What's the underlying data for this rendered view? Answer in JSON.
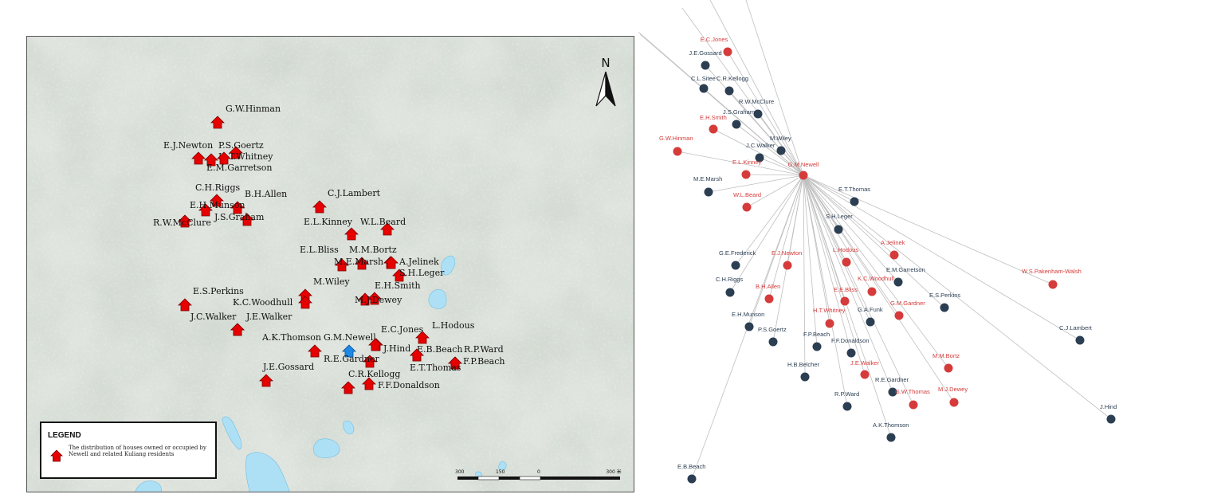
{
  "map": {
    "compass_label": "N",
    "houses": [
      {
        "label": "G.W.Hinman",
        "highlight": false
      },
      {
        "label": "E.J.Newton",
        "highlight": false
      },
      {
        "label": "P.S.Goertz",
        "highlight": false
      },
      {
        "label": "H.T.Whitney",
        "highlight": false
      },
      {
        "label": "E.M.Garretson",
        "highlight": false
      },
      {
        "label": "C.H.Riggs",
        "highlight": false
      },
      {
        "label": "B.H.Allen",
        "highlight": false
      },
      {
        "label": "E.H.Munson",
        "highlight": false
      },
      {
        "label": "J.S.Graham",
        "highlight": false
      },
      {
        "label": "R.W.McClure",
        "highlight": false
      },
      {
        "label": "C.J.Lambert",
        "highlight": false
      },
      {
        "label": "E.L.Kinney",
        "highlight": false
      },
      {
        "label": "W.L.Beard",
        "highlight": false
      },
      {
        "label": "E.L.Bliss",
        "highlight": false
      },
      {
        "label": "M.M.Bortz",
        "highlight": false
      },
      {
        "label": "M.E.Marsh",
        "highlight": false
      },
      {
        "label": "A.Jelinek",
        "highlight": false
      },
      {
        "label": "S.H.Leger",
        "highlight": false
      },
      {
        "label": "E.S.Perkins",
        "highlight": false
      },
      {
        "label": "M.Wiley",
        "highlight": false
      },
      {
        "label": "E.H.Smith",
        "highlight": false
      },
      {
        "label": "K.C.Woodhull",
        "highlight": false
      },
      {
        "label": "M.J.Dewey",
        "highlight": false
      },
      {
        "label": "J.C.Walker",
        "highlight": false
      },
      {
        "label": "J.E.Walker",
        "highlight": false
      },
      {
        "label": "L.Hodous",
        "highlight": false
      },
      {
        "label": "E.C.Jones",
        "highlight": false
      },
      {
        "label": "A.K.Thomson",
        "highlight": false
      },
      {
        "label": "G.M.Newell",
        "highlight": true
      },
      {
        "label": "J.Hind",
        "highlight": false
      },
      {
        "label": "E.B.Beach",
        "highlight": false
      },
      {
        "label": "R.P.Ward",
        "highlight": false
      },
      {
        "label": "R.E.Gardner",
        "highlight": false
      },
      {
        "label": "F.P.Beach",
        "highlight": false
      },
      {
        "label": "J.E.Gossard",
        "highlight": false
      },
      {
        "label": "E.T.Thomas",
        "highlight": false
      },
      {
        "label": "C.R.Kellogg",
        "highlight": false
      },
      {
        "label": "F.F.Donaldson",
        "highlight": false
      }
    ],
    "legend": {
      "title": "LEGEND",
      "description": "The distribution of houses owned or occupied by Newell and related Kuliang residents"
    },
    "scale": {
      "left": "300",
      "middle": "150",
      "zero": "0",
      "right": "300 米"
    },
    "colors": {
      "house": "#e60000",
      "newell_house": "#1e88e5",
      "water": "#aee0f5"
    }
  },
  "network": {
    "center": {
      "label": "G.M.Newell",
      "color": "#d63b3b"
    },
    "colors": {
      "red": "#d63b3b",
      "dark": "#2b3e52",
      "edge": "#bfbfbf"
    },
    "nodes": [
      {
        "label": "E.C.Jones",
        "color": "red"
      },
      {
        "label": "J.E.Gossard",
        "color": "dark"
      },
      {
        "label": "C.L.Sitee",
        "color": "dark"
      },
      {
        "label": "C.R.Kellogg",
        "color": "dark"
      },
      {
        "label": "R.W.McClure",
        "color": "dark"
      },
      {
        "label": "J.S.Graham",
        "color": "dark"
      },
      {
        "label": "E.H.Smith",
        "color": "red"
      },
      {
        "label": "M.Wiley",
        "color": "dark"
      },
      {
        "label": "G.W.Hinman",
        "color": "red"
      },
      {
        "label": "J.C.Walker",
        "color": "dark"
      },
      {
        "label": "E.L.Kinney",
        "color": "red"
      },
      {
        "label": "M.E.Marsh",
        "color": "dark"
      },
      {
        "label": "W.L.Beard",
        "color": "red"
      },
      {
        "label": "E.T.Thomas",
        "color": "dark"
      },
      {
        "label": "S.H.Leger",
        "color": "dark"
      },
      {
        "label": "A.Jelinek",
        "color": "red"
      },
      {
        "label": "G.E.Frederick",
        "color": "dark"
      },
      {
        "label": "E.J.Newton",
        "color": "red"
      },
      {
        "label": "L.Hodous",
        "color": "red"
      },
      {
        "label": "E.M.Garretson",
        "color": "dark"
      },
      {
        "label": "W.S.Pakenham-Walsh",
        "color": "red"
      },
      {
        "label": "C.H.Riggs",
        "color": "dark"
      },
      {
        "label": "K.C.Woodhull",
        "color": "red"
      },
      {
        "label": "B.H.Allen",
        "color": "red"
      },
      {
        "label": "E.E.Bliss",
        "color": "red"
      },
      {
        "label": "E.S.Perkins",
        "color": "dark"
      },
      {
        "label": "G.M.Gardner",
        "color": "red"
      },
      {
        "label": "H.T.Whitney",
        "color": "red"
      },
      {
        "label": "E.H.Munson",
        "color": "dark"
      },
      {
        "label": "G.A.Funk",
        "color": "dark"
      },
      {
        "label": "P.S.Goertz",
        "color": "dark"
      },
      {
        "label": "F.P.Beach",
        "color": "dark"
      },
      {
        "label": "F.F.Donaldson",
        "color": "dark"
      },
      {
        "label": "C.J.Lambert",
        "color": "dark"
      },
      {
        "label": "M.M.Bortz",
        "color": "red"
      },
      {
        "label": "H.B.Belcher",
        "color": "dark"
      },
      {
        "label": "J.E.Walker",
        "color": "red"
      },
      {
        "label": "R.E.Gardner",
        "color": "dark"
      },
      {
        "label": "R.P.Ward",
        "color": "dark"
      },
      {
        "label": "G.W.Thomas",
        "color": "red"
      },
      {
        "label": "M.J.Dewey",
        "color": "red"
      },
      {
        "label": "J.Hind",
        "color": "dark"
      },
      {
        "label": "A.K.Thomson",
        "color": "dark"
      },
      {
        "label": "E.B.Beach",
        "color": "dark"
      }
    ]
  }
}
